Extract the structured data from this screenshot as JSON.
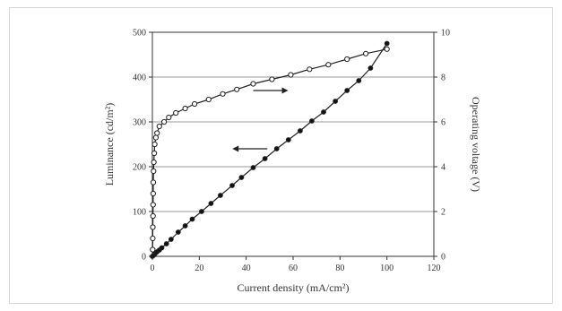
{
  "chart_data": {
    "type": "line",
    "title": "",
    "xlabel": "Current density (mA/cm²)",
    "ylabel_left": "Luminance (cd/m²)",
    "ylabel_right": "Operating voltage (V)",
    "xlim": [
      0,
      120
    ],
    "ylim_left": [
      0,
      500
    ],
    "ylim_right": [
      0,
      10
    ],
    "x_ticks": [
      "0",
      "20",
      "40",
      "60",
      "80",
      "100",
      "120"
    ],
    "y_left_ticks": [
      "0",
      "100",
      "200",
      "300",
      "400",
      "500"
    ],
    "y_right_ticks": [
      "0",
      "2",
      "4",
      "6",
      "8",
      "10"
    ],
    "grid": "horizontal",
    "series": [
      {
        "axis": "left",
        "marker": "filled-circle",
        "x": [
          0,
          0.5,
          1,
          1.5,
          2,
          3,
          4,
          6,
          8,
          11,
          14,
          17,
          21,
          25,
          29,
          34,
          38,
          43,
          48,
          53,
          58,
          63,
          68,
          73,
          78,
          83,
          88,
          93,
          100
        ],
        "y": [
          0,
          2,
          5,
          8,
          10,
          14,
          19,
          28,
          38,
          54,
          68,
          83,
          100,
          118,
          136,
          158,
          176,
          198,
          218,
          240,
          260,
          280,
          302,
          322,
          346,
          370,
          392,
          420,
          475
        ]
      },
      {
        "axis": "right",
        "marker": "open-circle",
        "x": [
          0.1,
          0.15,
          0.2,
          0.25,
          0.3,
          0.35,
          0.4,
          0.5,
          0.6,
          0.8,
          1,
          1.5,
          2,
          3,
          5,
          7,
          10,
          14,
          18,
          24,
          30,
          36,
          43,
          51,
          59,
          67,
          75,
          83,
          91,
          100
        ],
        "y": [
          0.3,
          0.8,
          1.3,
          1.8,
          2.3,
          2.8,
          3.3,
          3.8,
          4.2,
          4.6,
          5.0,
          5.3,
          5.5,
          5.8,
          6.0,
          6.2,
          6.4,
          6.6,
          6.8,
          7.0,
          7.25,
          7.45,
          7.7,
          7.9,
          8.1,
          8.35,
          8.55,
          8.8,
          9.05,
          9.25
        ]
      }
    ],
    "arrows": [
      {
        "points_to": "right",
        "at_x": 43,
        "at_y_left": 370
      },
      {
        "points_to": "left",
        "at_x": 49,
        "at_y_left": 240
      }
    ]
  }
}
